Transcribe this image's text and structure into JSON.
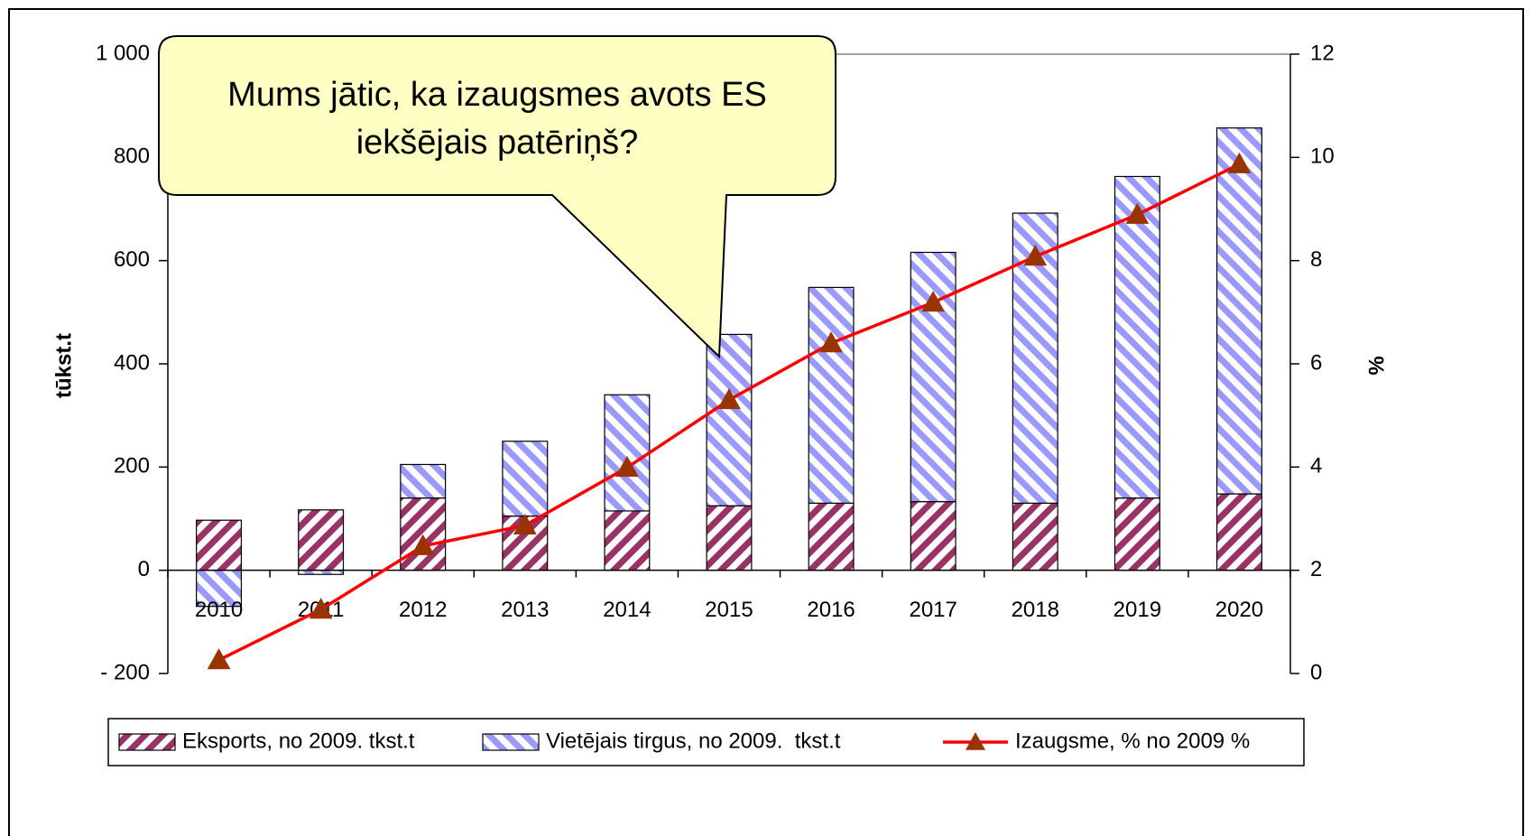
{
  "chart_data": {
    "type": "bar+line",
    "annotation": [
      "Mums jātic, ka izaugsmes avots ES",
      "iekšējais patēriņš?"
    ],
    "y_label": "tūkst.t",
    "y2_label": "%",
    "categories": [
      "2010",
      "2011",
      "2012",
      "2013",
      "2014",
      "2015",
      "2016",
      "2017",
      "2018",
      "2019",
      "2020"
    ],
    "series": [
      {
        "name": "Eksports, no 2009. tkst.t",
        "color": "#993366",
        "kind": "bar",
        "values": [
          97,
          117,
          140,
          105,
          115,
          125,
          130,
          133,
          130,
          140,
          148
        ]
      },
      {
        "name": "Vietējais tirgus, no 2009.  tkst.t",
        "color": "#9999ff",
        "kind": "bar",
        "values": [
          -70,
          -8,
          65,
          145,
          225,
          332,
          418,
          483,
          562,
          623,
          709
        ]
      },
      {
        "name": "Izaugsme, % no 2009 %",
        "color": "#ff0000",
        "kind": "line",
        "axis": "y2",
        "values": [
          0.26,
          1.24,
          2.47,
          2.87,
          3.99,
          5.3,
          6.4,
          7.19,
          8.08,
          8.89,
          9.87
        ]
      }
    ],
    "ylim": [
      -200,
      1000
    ],
    "yticks": [
      {
        "value": -200,
        "label": "- 200"
      },
      0,
      200,
      400,
      600,
      800,
      {
        "value": 1000,
        "label": "1 000"
      }
    ],
    "y2lim": [
      0,
      12
    ],
    "y2ticks": [
      0,
      2,
      4,
      6,
      8,
      10,
      12
    ],
    "legend": "bottom"
  }
}
